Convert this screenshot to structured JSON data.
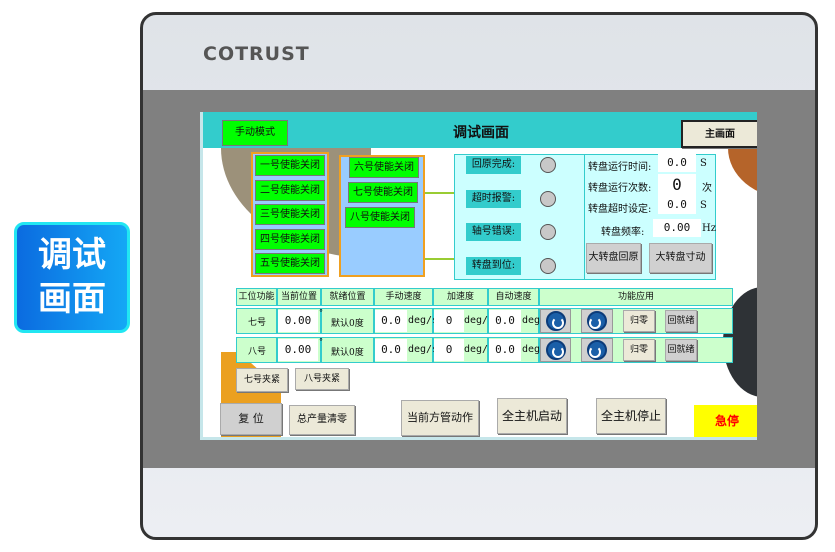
{
  "badge": {
    "line1": "调试",
    "line2": "画面"
  },
  "device": {
    "brand": "COTRUST"
  },
  "header": {
    "mode_button": "手动模式",
    "title": "调试画面",
    "main_button": "主画面"
  },
  "enable_left": [
    "一号使能关闭",
    "二号使能关闭",
    "三号使能关闭",
    "四号使能关闭",
    "五号使能关闭"
  ],
  "enable_right": [
    "六号使能关闭",
    "七号使能关闭",
    "八号使能关闭"
  ],
  "status": [
    {
      "label": "回原完成:",
      "on": false
    },
    {
      "label": "超时报警:",
      "on": false
    },
    {
      "label": "轴号错误:",
      "on": false
    },
    {
      "label": "转盘到位:",
      "on": false
    }
  ],
  "turntable": {
    "run_time_label": "转盘运行时间:",
    "run_time": "0.0",
    "run_time_unit": "S",
    "run_count_label": "转盘运行次数:",
    "run_count": "0",
    "run_count_unit": "次",
    "timeout_label": "转盘超时设定:",
    "timeout": "0.0",
    "timeout_unit": "S",
    "freq_label": "转盘频率:",
    "freq": "0.00",
    "freq_unit": "Hz",
    "home_button": "大转盘回原",
    "jog_button": "大转盘寸动"
  },
  "table": {
    "headers": [
      "工位功能",
      "当前位置",
      "就绪位置",
      "手动速度",
      "加速度",
      "自动速度",
      "功能应用"
    ],
    "rows": [
      {
        "name": "七号",
        "pos": "0.00",
        "pos_unit": "°",
        "ready": "默认0度",
        "manual": "0.0",
        "manual_unit": "deg/s",
        "acc": "0",
        "acc_unit": "deg/s",
        "auto": "0.0",
        "auto_unit": "deg/s",
        "zero": "归零",
        "ready_btn": "回就绪"
      },
      {
        "name": "八号",
        "pos": "0.00",
        "pos_unit": "°",
        "ready": "默认0度",
        "manual": "0.0",
        "manual_unit": "deg/s",
        "acc": "0",
        "acc_unit": "deg/s",
        "auto": "0.0",
        "auto_unit": "deg/s",
        "zero": "归零",
        "ready_btn": "回就绪"
      }
    ]
  },
  "clamps": [
    "七号夹紧",
    "八号夹紧"
  ],
  "bottom": {
    "reset": "复 位",
    "clear": "总产量清零",
    "pipe_action": "当前方管动作",
    "start_all": "全主机启动",
    "stop_all": "全主机停止",
    "estop": "急停"
  },
  "colors": {
    "header": "#33cccc",
    "enable_on": "#00ff00",
    "estop": "#ffff00",
    "estop_text": "#ff0000"
  }
}
